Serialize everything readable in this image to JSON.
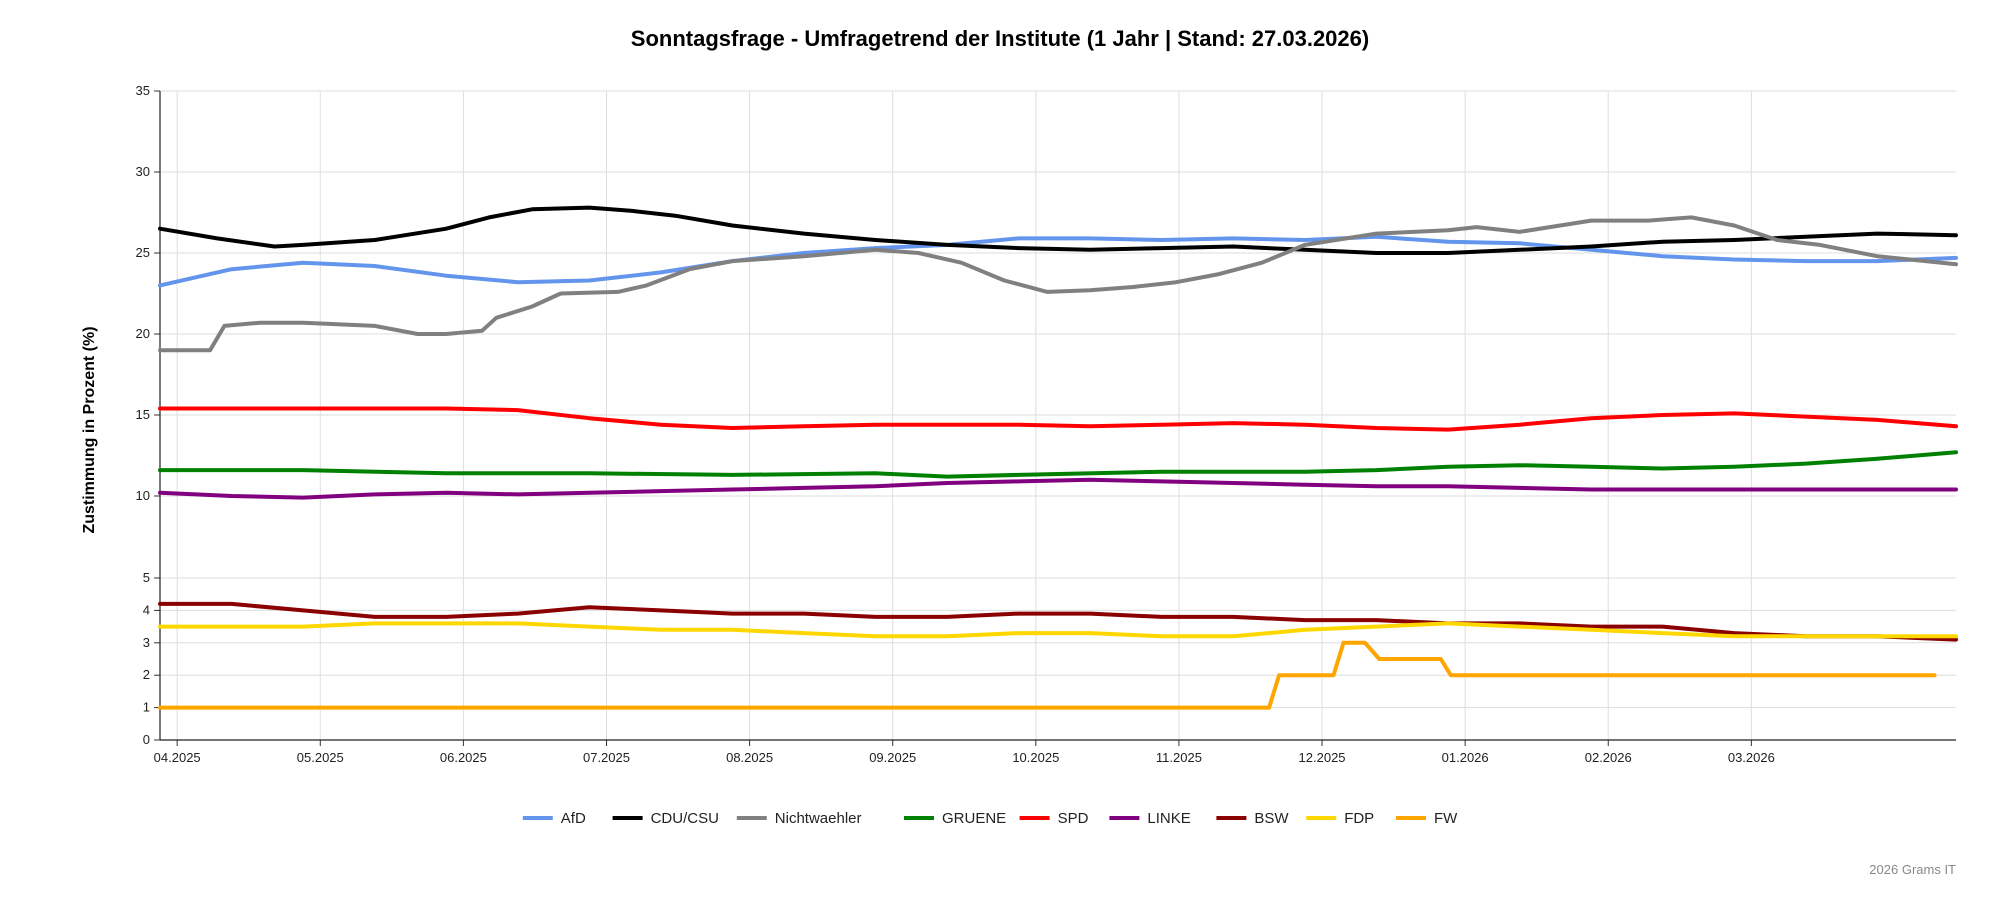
{
  "chart_data": {
    "type": "line",
    "title": "Sonntagsfrage - Umfragetrend der Institute (1 Jahr | Stand: 27.03.2026)",
    "ylabel": "Zustimmung in Prozent (%)",
    "xlabel": "",
    "ylim": [
      0,
      35
    ],
    "xlim": [
      0,
      12.55
    ],
    "grid": true,
    "scale_note": "y-axis is stretched between 0 and 5",
    "y_ticks_low": [
      0,
      1,
      2,
      3,
      4,
      5
    ],
    "y_ticks_high": [
      10,
      15,
      20,
      25,
      30,
      35
    ],
    "x_ticks": [
      {
        "label": "04.2025",
        "t": 0.12
      },
      {
        "label": "05.2025",
        "t": 1.12
      },
      {
        "label": "06.2025",
        "t": 2.12
      },
      {
        "label": "07.2025",
        "t": 3.12
      },
      {
        "label": "08.2025",
        "t": 4.12
      },
      {
        "label": "09.2025",
        "t": 5.12
      },
      {
        "label": "10.2025",
        "t": 6.12
      },
      {
        "label": "11.2025",
        "t": 7.12
      },
      {
        "label": "12.2025",
        "t": 8.12
      },
      {
        "label": "01.2026",
        "t": 9.12
      },
      {
        "label": "02.2026",
        "t": 10.12
      },
      {
        "label": "03.2026",
        "t": 11.12
      }
    ],
    "legend_position": "bottom-center",
    "series": [
      {
        "name": "AfD",
        "color": "#6495ED",
        "x": [
          0,
          0.5,
          1.0,
          1.5,
          2.0,
          2.5,
          3.0,
          3.5,
          4.0,
          4.5,
          5.0,
          5.5,
          6.0,
          6.5,
          7.0,
          7.5,
          8.0,
          8.5,
          9.0,
          9.5,
          10.0,
          10.5,
          11.0,
          11.5,
          12.0,
          12.55
        ],
        "values": [
          23.0,
          24.0,
          24.4,
          24.2,
          23.6,
          23.2,
          23.3,
          23.8,
          24.5,
          25.0,
          25.3,
          25.5,
          25.9,
          25.9,
          25.8,
          25.9,
          25.8,
          26.0,
          25.7,
          25.6,
          25.2,
          24.8,
          24.6,
          24.5,
          24.5,
          24.7
        ]
      },
      {
        "name": "CDU/CSU",
        "color": "#000000",
        "x": [
          0,
          0.4,
          0.8,
          1.0,
          1.5,
          2.0,
          2.3,
          2.6,
          3.0,
          3.3,
          3.6,
          4.0,
          4.5,
          5.0,
          5.5,
          6.0,
          6.5,
          7.0,
          7.5,
          8.0,
          8.5,
          9.0,
          9.5,
          10.0,
          10.5,
          11.0,
          11.5,
          12.0,
          12.55
        ],
        "values": [
          26.5,
          25.9,
          25.4,
          25.5,
          25.8,
          26.5,
          27.2,
          27.7,
          27.8,
          27.6,
          27.3,
          26.7,
          26.2,
          25.8,
          25.5,
          25.3,
          25.2,
          25.3,
          25.4,
          25.2,
          25.0,
          25.0,
          25.2,
          25.4,
          25.7,
          25.8,
          26.0,
          26.2,
          26.1
        ]
      },
      {
        "name": "Nichtwaehler",
        "color": "#808080",
        "x": [
          0,
          0.35,
          0.45,
          0.7,
          1.0,
          1.5,
          1.8,
          2.0,
          2.25,
          2.35,
          2.6,
          2.8,
          3.2,
          3.4,
          3.7,
          4.0,
          4.5,
          5.0,
          5.3,
          5.6,
          5.9,
          6.2,
          6.5,
          6.8,
          7.1,
          7.4,
          7.7,
          8.0,
          8.5,
          9.0,
          9.2,
          9.5,
          10.0,
          10.4,
          10.7,
          11.0,
          11.3,
          11.6,
          12.0,
          12.55
        ],
        "values": [
          19.0,
          19.0,
          20.5,
          20.7,
          20.7,
          20.5,
          20.0,
          20.0,
          20.2,
          21.0,
          21.7,
          22.5,
          22.6,
          23.0,
          24.0,
          24.5,
          24.8,
          25.2,
          25.0,
          24.4,
          23.3,
          22.6,
          22.7,
          22.9,
          23.2,
          23.7,
          24.4,
          25.5,
          26.2,
          26.4,
          26.6,
          26.3,
          27.0,
          27.0,
          27.2,
          26.7,
          25.8,
          25.5,
          24.8,
          24.3
        ]
      },
      {
        "name": "GRUENE",
        "color": "#008000",
        "x": [
          0,
          1.0,
          2.0,
          3.0,
          4.0,
          5.0,
          5.5,
          6.0,
          7.0,
          8.0,
          8.5,
          9.0,
          9.5,
          10.0,
          10.5,
          11.0,
          11.5,
          12.0,
          12.55
        ],
        "values": [
          11.6,
          11.6,
          11.4,
          11.4,
          11.3,
          11.4,
          11.2,
          11.3,
          11.5,
          11.5,
          11.6,
          11.8,
          11.9,
          11.8,
          11.7,
          11.8,
          12.0,
          12.3,
          12.7
        ]
      },
      {
        "name": "SPD",
        "color": "#FF0000",
        "x": [
          0,
          0.5,
          1.0,
          1.5,
          2.0,
          2.5,
          3.0,
          3.5,
          4.0,
          4.5,
          5.0,
          5.5,
          6.0,
          6.5,
          7.0,
          7.5,
          8.0,
          8.5,
          9.0,
          9.5,
          10.0,
          10.5,
          11.0,
          11.5,
          12.0,
          12.55
        ],
        "values": [
          15.4,
          15.4,
          15.4,
          15.4,
          15.4,
          15.3,
          14.8,
          14.4,
          14.2,
          14.3,
          14.4,
          14.4,
          14.4,
          14.3,
          14.4,
          14.5,
          14.4,
          14.2,
          14.1,
          14.4,
          14.8,
          15.0,
          15.1,
          14.9,
          14.7,
          14.3
        ]
      },
      {
        "name": "LINKE",
        "color": "#800080",
        "x": [
          0,
          0.5,
          1.0,
          1.5,
          2.0,
          2.5,
          3.0,
          3.5,
          4.0,
          4.5,
          5.0,
          5.5,
          6.0,
          6.5,
          7.0,
          7.5,
          8.0,
          8.5,
          9.0,
          9.5,
          10.0,
          10.5,
          11.0,
          11.5,
          12.0,
          12.55
        ],
        "values": [
          10.2,
          10.0,
          9.9,
          10.1,
          10.2,
          10.1,
          10.2,
          10.3,
          10.4,
          10.5,
          10.6,
          10.8,
          10.9,
          11.0,
          10.9,
          10.8,
          10.7,
          10.6,
          10.6,
          10.5,
          10.4,
          10.4,
          10.4,
          10.4,
          10.4,
          10.4
        ]
      },
      {
        "name": "BSW",
        "color": "#8B0000",
        "x": [
          0,
          0.5,
          1.0,
          1.5,
          2.0,
          2.5,
          3.0,
          3.5,
          4.0,
          4.5,
          5.0,
          5.5,
          6.0,
          6.5,
          7.0,
          7.5,
          8.0,
          8.5,
          9.0,
          9.5,
          10.0,
          10.5,
          11.0,
          11.5,
          12.0,
          12.55
        ],
        "values": [
          4.2,
          4.2,
          4.0,
          3.8,
          3.8,
          3.9,
          4.1,
          4.0,
          3.9,
          3.9,
          3.8,
          3.8,
          3.9,
          3.9,
          3.8,
          3.8,
          3.7,
          3.7,
          3.6,
          3.6,
          3.5,
          3.5,
          3.3,
          3.2,
          3.2,
          3.1
        ]
      },
      {
        "name": "FDP",
        "color": "#FFD700",
        "x": [
          0,
          0.5,
          1.0,
          1.5,
          2.0,
          2.5,
          3.0,
          3.5,
          4.0,
          4.5,
          5.0,
          5.5,
          6.0,
          6.5,
          7.0,
          7.5,
          8.0,
          8.5,
          9.0,
          9.5,
          10.0,
          10.5,
          11.0,
          11.5,
          12.0,
          12.55
        ],
        "values": [
          3.5,
          3.5,
          3.5,
          3.6,
          3.6,
          3.6,
          3.5,
          3.4,
          3.4,
          3.3,
          3.2,
          3.2,
          3.3,
          3.3,
          3.2,
          3.2,
          3.4,
          3.5,
          3.6,
          3.5,
          3.4,
          3.3,
          3.2,
          3.2,
          3.2,
          3.2
        ]
      },
      {
        "name": "FW",
        "color": "#FFA500",
        "x": [
          0,
          7.75,
          7.82,
          8.2,
          8.27,
          8.42,
          8.52,
          8.95,
          9.02,
          12.4
        ],
        "values": [
          1.0,
          1.0,
          2.0,
          2.0,
          3.0,
          3.0,
          2.5,
          2.5,
          2.0,
          2.0
        ]
      }
    ]
  },
  "credit": "2026 Grams IT"
}
